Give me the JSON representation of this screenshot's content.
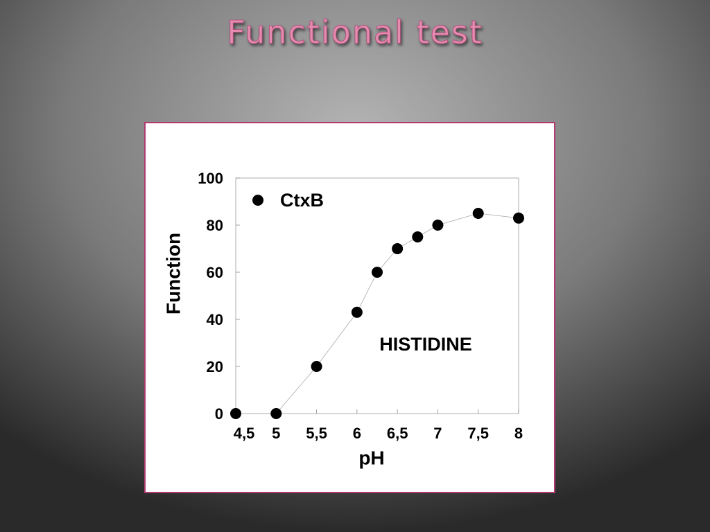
{
  "chart_data": {
    "type": "line",
    "title": "Functional test",
    "x_label": "pH",
    "y_label": "Function",
    "annotation": "HISTIDINE",
    "x": [
      4.5,
      5,
      5.5,
      6,
      6.25,
      6.5,
      6.75,
      7,
      7.5,
      8
    ],
    "series": [
      {
        "name": "CtxB",
        "color": "#000000",
        "values": [
          0,
          0,
          20,
          43,
          60,
          70,
          75,
          80,
          85,
          83
        ]
      }
    ],
    "xlim": [
      4.5,
      8
    ],
    "xticks": [
      {
        "value": 4.5,
        "label": "4,5"
      },
      5,
      {
        "value": 5.5,
        "label": "5,5"
      },
      6,
      {
        "value": 6.5,
        "label": "6,5"
      },
      7,
      {
        "value": 7.5,
        "label": "7,5"
      },
      8
    ],
    "ylim": [
      0,
      100
    ],
    "yticks": [
      0,
      20,
      40,
      60,
      80,
      100
    ],
    "grid": false,
    "legend": "upper left"
  }
}
